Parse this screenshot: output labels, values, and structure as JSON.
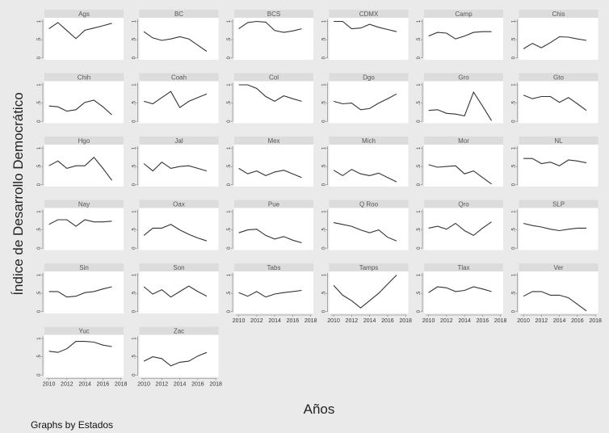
{
  "chart_data": {
    "type": "line",
    "layout": "small-multiples",
    "ylabel": "Índice de Desarrollo Democrático",
    "xlabel": "Años",
    "note": "Graphs by Estados",
    "x": [
      2010,
      2011,
      2012,
      2013,
      2014,
      2015,
      2016,
      2017
    ],
    "xticks": [
      "2010",
      "2012",
      "2014",
      "2016",
      "2018"
    ],
    "xlim": [
      2009.5,
      2018.3
    ],
    "ylim": [
      -0.05,
      1.1
    ],
    "yticks": [
      "1",
      ".5",
      "0"
    ],
    "panels": [
      {
        "name": "Ags",
        "values": [
          0.8,
          0.97,
          0.75,
          0.53,
          0.76,
          0.82,
          0.88,
          0.95
        ]
      },
      {
        "name": "BC",
        "values": [
          0.72,
          0.55,
          0.48,
          0.52,
          0.58,
          0.52,
          0.35,
          0.18
        ]
      },
      {
        "name": "BCS",
        "values": [
          0.8,
          0.97,
          1.0,
          0.98,
          0.75,
          0.7,
          0.74,
          0.8
        ]
      },
      {
        "name": "CDMX",
        "values": [
          1.0,
          1.0,
          0.8,
          0.82,
          0.92,
          0.84,
          0.78,
          0.72
        ]
      },
      {
        "name": "Camp",
        "values": [
          0.6,
          0.7,
          0.68,
          0.52,
          0.6,
          0.7,
          0.72,
          0.72
        ]
      },
      {
        "name": "Chis",
        "values": [
          0.25,
          0.4,
          0.28,
          0.42,
          0.58,
          0.57,
          0.52,
          0.48
        ]
      },
      {
        "name": "Chih",
        "values": [
          0.42,
          0.4,
          0.28,
          0.32,
          0.52,
          0.58,
          0.4,
          0.18
        ]
      },
      {
        "name": "Coah",
        "values": [
          0.55,
          0.48,
          0.65,
          0.82,
          0.38,
          0.55,
          0.65,
          0.75
        ]
      },
      {
        "name": "Col",
        "values": [
          1.0,
          1.0,
          0.9,
          0.68,
          0.55,
          0.7,
          0.62,
          0.55
        ]
      },
      {
        "name": "Dgo",
        "values": [
          0.55,
          0.48,
          0.5,
          0.32,
          0.35,
          0.5,
          0.62,
          0.75
        ]
      },
      {
        "name": "Gro",
        "values": [
          0.3,
          0.32,
          0.22,
          0.2,
          0.15,
          0.8,
          0.42,
          0.02
        ]
      },
      {
        "name": "Gto",
        "values": [
          0.72,
          0.62,
          0.68,
          0.68,
          0.52,
          0.65,
          0.48,
          0.3
        ]
      },
      {
        "name": "Hgo",
        "values": [
          0.52,
          0.65,
          0.45,
          0.52,
          0.52,
          0.75,
          0.45,
          0.12
        ]
      },
      {
        "name": "Jal",
        "values": [
          0.58,
          0.38,
          0.62,
          0.45,
          0.5,
          0.52,
          0.45,
          0.38
        ]
      },
      {
        "name": "Mex",
        "values": [
          0.45,
          0.3,
          0.38,
          0.25,
          0.35,
          0.4,
          0.3,
          0.2
        ]
      },
      {
        "name": "Mich",
        "values": [
          0.4,
          0.25,
          0.42,
          0.3,
          0.25,
          0.32,
          0.2,
          0.08
        ]
      },
      {
        "name": "Mor",
        "values": [
          0.55,
          0.48,
          0.5,
          0.52,
          0.3,
          0.38,
          0.2,
          0.02
        ]
      },
      {
        "name": "NL",
        "values": [
          0.72,
          0.72,
          0.58,
          0.62,
          0.52,
          0.68,
          0.65,
          0.6
        ]
      },
      {
        "name": "Nay",
        "values": [
          0.65,
          0.78,
          0.78,
          0.6,
          0.78,
          0.72,
          0.72,
          0.74
        ]
      },
      {
        "name": "Oax",
        "values": [
          0.35,
          0.55,
          0.55,
          0.65,
          0.5,
          0.38,
          0.28,
          0.2
        ]
      },
      {
        "name": "Pue",
        "values": [
          0.42,
          0.5,
          0.52,
          0.35,
          0.25,
          0.32,
          0.22,
          0.15
        ]
      },
      {
        "name": "Q Roo",
        "values": [
          0.7,
          0.65,
          0.6,
          0.5,
          0.42,
          0.5,
          0.3,
          0.2
        ]
      },
      {
        "name": "Qro",
        "values": [
          0.55,
          0.6,
          0.52,
          0.68,
          0.48,
          0.35,
          0.55,
          0.72
        ]
      },
      {
        "name": "SLP",
        "values": [
          0.68,
          0.62,
          0.58,
          0.52,
          0.48,
          0.52,
          0.55,
          0.55
        ]
      },
      {
        "name": "Sin",
        "values": [
          0.55,
          0.55,
          0.4,
          0.42,
          0.52,
          0.55,
          0.62,
          0.68
        ]
      },
      {
        "name": "Son",
        "values": [
          0.68,
          0.48,
          0.6,
          0.4,
          0.55,
          0.7,
          0.55,
          0.42
        ]
      },
      {
        "name": "Tabs",
        "values": [
          0.52,
          0.42,
          0.55,
          0.4,
          0.48,
          0.52,
          0.55,
          0.58
        ]
      },
      {
        "name": "Tamps",
        "values": [
          0.72,
          0.45,
          0.3,
          0.1,
          0.3,
          0.5,
          0.75,
          1.0
        ]
      },
      {
        "name": "Tlax",
        "values": [
          0.52,
          0.68,
          0.65,
          0.55,
          0.58,
          0.68,
          0.62,
          0.55
        ]
      },
      {
        "name": "Ver",
        "values": [
          0.42,
          0.55,
          0.55,
          0.45,
          0.45,
          0.38,
          0.2,
          0.02
        ]
      },
      {
        "name": "Yuc",
        "values": [
          0.65,
          0.62,
          0.72,
          0.92,
          0.92,
          0.9,
          0.82,
          0.78
        ]
      },
      {
        "name": "Zac",
        "values": [
          0.38,
          0.5,
          0.45,
          0.25,
          0.35,
          0.38,
          0.52,
          0.62
        ]
      }
    ]
  }
}
